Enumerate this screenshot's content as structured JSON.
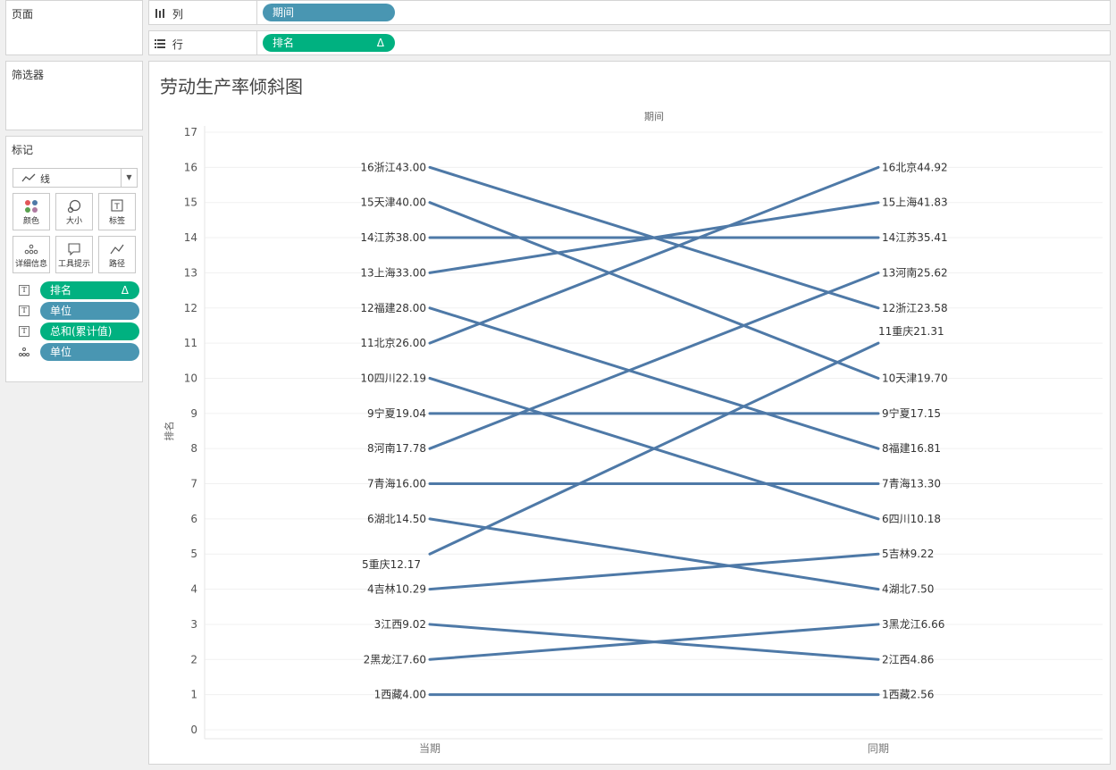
{
  "left_panel": {
    "pages_title": "页面",
    "filters_title": "筛选器",
    "marks_title": "标记",
    "mark_type": "线",
    "mark_buttons": [
      {
        "name": "color",
        "label": "颜色",
        "icon": "color-dots-icon"
      },
      {
        "name": "size",
        "label": "大小",
        "icon": "size-icon"
      },
      {
        "name": "label",
        "label": "标签",
        "icon": "text-label-icon"
      },
      {
        "name": "detail",
        "label": "详细信息",
        "icon": "detail-dots-icon"
      },
      {
        "name": "tooltip",
        "label": "工具提示",
        "icon": "tooltip-icon"
      },
      {
        "name": "path",
        "label": "路径",
        "icon": "path-icon"
      }
    ],
    "mark_fields": [
      {
        "type_icon": "T",
        "label": "排名",
        "color": "green",
        "delta": "Δ"
      },
      {
        "type_icon": "T",
        "label": "单位",
        "color": "blue"
      },
      {
        "type_icon": "T",
        "label": "总和(累计值)",
        "color": "green"
      },
      {
        "type_icon": "dots",
        "label": "单位",
        "color": "blue"
      }
    ]
  },
  "shelves": {
    "columns": {
      "label": "列",
      "icon": "columns-icon",
      "pill": "期间"
    },
    "rows": {
      "label": "行",
      "icon": "rows-icon",
      "pill": "排名",
      "pill_delta": "Δ"
    }
  },
  "viz": {
    "title": "劳动生产率倾斜图"
  },
  "colors": {
    "line": "#4e79a7",
    "pill_blue": "#4996b2",
    "pill_green": "#00b180"
  },
  "chart_data": {
    "type": "line",
    "title": "劳动生产率倾斜图",
    "column_header": "期间",
    "xlabel": "",
    "ylabel": "排名",
    "categories": [
      "当期",
      "同期"
    ],
    "ylim": [
      0,
      17
    ],
    "yticks": [
      0,
      1,
      2,
      3,
      4,
      5,
      6,
      7,
      8,
      9,
      10,
      11,
      12,
      13,
      14,
      15,
      16,
      17
    ],
    "grid": true,
    "series": [
      {
        "name": "浙江",
        "values": [
          16,
          12
        ],
        "labels": [
          "16浙江43.00",
          "12浙江23.58"
        ]
      },
      {
        "name": "天津",
        "values": [
          15,
          10
        ],
        "labels": [
          "15天津40.00",
          "10天津19.70"
        ]
      },
      {
        "name": "江苏",
        "values": [
          14,
          14
        ],
        "labels": [
          "14江苏38.00",
          "14江苏35.41"
        ]
      },
      {
        "name": "上海",
        "values": [
          13,
          15
        ],
        "labels": [
          "13上海33.00",
          "15上海41.83"
        ]
      },
      {
        "name": "福建",
        "values": [
          12,
          8
        ],
        "labels": [
          "12福建28.00",
          "8福建16.81"
        ]
      },
      {
        "name": "北京",
        "values": [
          11,
          16
        ],
        "labels": [
          "11北京26.00",
          "16北京44.92"
        ]
      },
      {
        "name": "四川",
        "values": [
          10,
          6
        ],
        "labels": [
          "10四川22.19",
          "6四川10.18"
        ]
      },
      {
        "name": "宁夏",
        "values": [
          9,
          9
        ],
        "labels": [
          "9宁夏19.04",
          "9宁夏17.15"
        ]
      },
      {
        "name": "河南",
        "values": [
          8,
          13
        ],
        "labels": [
          "8河南17.78",
          "13河南25.62"
        ]
      },
      {
        "name": "青海",
        "values": [
          7,
          7
        ],
        "labels": [
          "7青海16.00",
          "7青海13.30"
        ]
      },
      {
        "name": "湖北",
        "values": [
          6,
          4
        ],
        "labels": [
          "6湖北14.50",
          "4湖北7.50"
        ]
      },
      {
        "name": "重庆",
        "values": [
          5,
          11
        ],
        "labels": [
          "5重庆12.17",
          "11重庆21.31"
        ]
      },
      {
        "name": "吉林",
        "values": [
          4,
          5
        ],
        "labels": [
          "4吉林10.29",
          "5吉林9.22"
        ]
      },
      {
        "name": "江西",
        "values": [
          3,
          2
        ],
        "labels": [
          "3江西9.02",
          "2江西4.86"
        ]
      },
      {
        "name": "黑龙江",
        "values": [
          2,
          3
        ],
        "labels": [
          "2黑龙江7.60",
          "3黑龙江6.66"
        ]
      },
      {
        "name": "西藏",
        "values": [
          1,
          1
        ],
        "labels": [
          "1西藏4.00",
          "1西藏2.56"
        ]
      }
    ]
  }
}
